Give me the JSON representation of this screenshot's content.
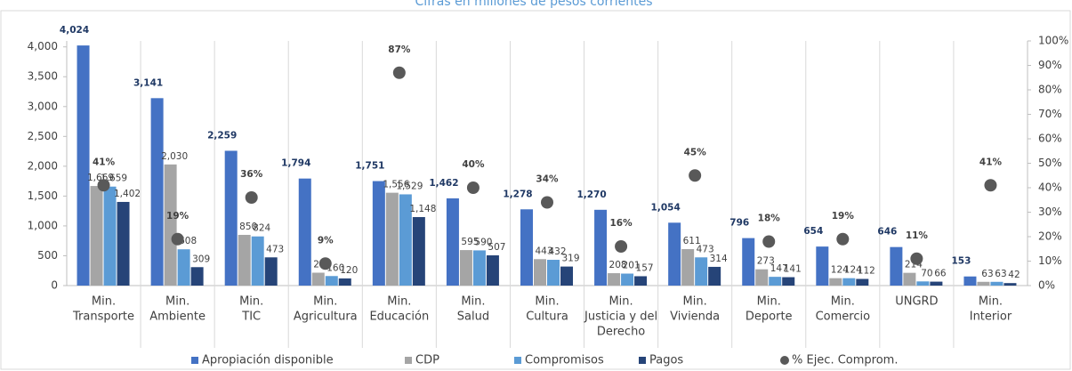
{
  "chart_data": {
    "type": "bar",
    "title": "Cifras en millones de pesos corrientes",
    "categories": [
      [
        "Min.",
        "Transporte"
      ],
      [
        "Min.",
        "Ambiente"
      ],
      [
        "Min.",
        "TIC"
      ],
      [
        "Min.",
        "Agricultura"
      ],
      [
        "Min.",
        "Educación"
      ],
      [
        "Min.",
        "Salud"
      ],
      [
        "Min.",
        "Cultura"
      ],
      [
        "Min.",
        "Justicia y del",
        "Derecho"
      ],
      [
        "Min.",
        "Vivienda"
      ],
      [
        "Min.",
        "Deporte"
      ],
      [
        "Min.",
        "Comercio"
      ],
      [
        "UNGRD"
      ],
      [
        "Min.",
        "Interior"
      ]
    ],
    "series": [
      {
        "name": "Apropiación disponible",
        "color": "#4472c4",
        "values": [
          4024,
          3141,
          2259,
          1794,
          1751,
          1462,
          1278,
          1270,
          1054,
          796,
          654,
          646,
          153
        ],
        "value_labels": [
          "4,024",
          "3,141",
          "2,259",
          "1,794",
          "1,751",
          "1,462",
          "1,278",
          "1,270",
          "1,054",
          "796",
          "654",
          "646",
          "153"
        ]
      },
      {
        "name": "CDP",
        "color": "#a5a5a5",
        "values": [
          1669,
          2030,
          850,
          216,
          1556,
          595,
          443,
          208,
          611,
          273,
          124,
          214,
          63
        ],
        "value_labels": [
          "1,669",
          "2,030",
          "850",
          "216",
          "1,556",
          "595",
          "443",
          "208",
          "611",
          "273",
          "124",
          "214",
          "63"
        ]
      },
      {
        "name": "Compromisos",
        "color": "#5b9bd5",
        "values": [
          1659,
          608,
          824,
          160,
          1529,
          590,
          432,
          201,
          473,
          147,
          124,
          70,
          63
        ],
        "value_labels": [
          "1,659",
          "608",
          "824",
          "160",
          "1,529",
          "590",
          "432",
          "201",
          "473",
          "147",
          "124",
          "70",
          "63"
        ]
      },
      {
        "name": "Pagos",
        "color": "#264478",
        "values": [
          1402,
          309,
          473,
          120,
          1148,
          507,
          319,
          157,
          314,
          141,
          112,
          66,
          42
        ],
        "value_labels": [
          "1,402",
          "309",
          "473",
          "120",
          "1,148",
          "507",
          "319",
          "157",
          "314",
          "141",
          "112",
          "66",
          "42"
        ]
      },
      {
        "name": "% Ejec. Comprom.",
        "color": "#595959",
        "axis": "y2",
        "type": "scatter",
        "values": [
          41,
          19,
          36,
          9,
          87,
          40,
          34,
          16,
          45,
          18,
          19,
          11,
          41
        ],
        "value_labels": [
          "41%",
          "19%",
          "36%",
          "9%",
          "87%",
          "40%",
          "34%",
          "16%",
          "45%",
          "18%",
          "19%",
          "11%",
          "41%"
        ]
      }
    ],
    "ylim": [
      0,
      4100
    ],
    "yticks": [
      0,
      500,
      {
        "value": 1000,
        "label": "1,000"
      },
      {
        "value": 1500,
        "label": "1,500"
      },
      {
        "value": 2000,
        "label": "2,000"
      },
      {
        "value": 2500,
        "label": "2,500"
      },
      {
        "value": 3000,
        "label": "3,000"
      },
      {
        "value": 3500,
        "label": "3,500"
      },
      {
        "value": 4000,
        "label": "4,000"
      }
    ],
    "y2lim": [
      0,
      100
    ],
    "y2ticks": [
      {
        "value": 0,
        "label": "0%"
      },
      {
        "value": 10,
        "label": "10%"
      },
      {
        "value": 20,
        "label": "20%"
      },
      {
        "value": 30,
        "label": "30%"
      },
      {
        "value": 40,
        "label": "40%"
      },
      {
        "value": 50,
        "label": "50%"
      },
      {
        "value": 60,
        "label": "60%"
      },
      {
        "value": 70,
        "label": "70%"
      },
      {
        "value": 80,
        "label": "80%"
      },
      {
        "value": 90,
        "label": "90%"
      },
      {
        "value": 100,
        "label": "100%"
      }
    ],
    "legend": "bottom"
  }
}
